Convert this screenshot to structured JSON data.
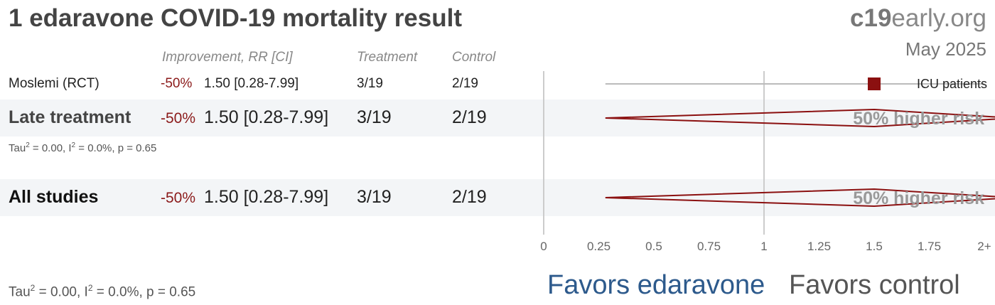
{
  "title": "1 edaravone COVID-19 mortality result",
  "brand": {
    "bold": "c19",
    "rest": "early.org"
  },
  "date": "May 2025",
  "headers": {
    "improvement": "Improvement, RR [CI]",
    "treatment": "Treatment",
    "control": "Control"
  },
  "rows": [
    {
      "label": "Moslemi (RCT)",
      "improvement": "-50%",
      "rr": "1.50 [0.28-7.99]",
      "treatment": "3/19",
      "control": "2/19",
      "note": "ICU patients"
    },
    {
      "label": "Late treatment",
      "improvement": "-50%",
      "rr": "1.50 [0.28-7.99]",
      "treatment": "3/19",
      "control": "2/19",
      "risk": "50% higher risk",
      "stats": {
        "tau": "Tau",
        "tau_val": " = 0.00, I",
        "i_val": " = 0.0%, p = 0.65",
        "sup": "2"
      }
    },
    {
      "label": "All studies",
      "improvement": "-50%",
      "rr": "1.50 [0.28-7.99]",
      "treatment": "3/19",
      "control": "2/19",
      "risk": "50% higher risk"
    }
  ],
  "footer_stats": {
    "tau": "Tau",
    "tau_val": " = 0.00, I",
    "i_val": " = 0.0%, p = 0.65",
    "sup": "2"
  },
  "favors": {
    "left": "Favors edaravone",
    "right": "Favors control"
  },
  "colors": {
    "marker": "#8b1010",
    "favors_left": "#2d5a8c",
    "favors_right": "#555555"
  },
  "chart_data": {
    "type": "forest",
    "xlim": [
      0,
      2
    ],
    "xticks": [
      "0",
      "0.25",
      "0.5",
      "0.75",
      "1",
      "1.25",
      "1.5",
      "1.75",
      "2+"
    ],
    "reference_line": 1,
    "studies": [
      {
        "name": "Moslemi (RCT)",
        "rr": 1.5,
        "ci_low": 0.28,
        "ci_high": 7.99
      }
    ],
    "pooled": [
      {
        "name": "Late treatment",
        "rr": 1.5,
        "ci_low": 0.28,
        "ci_high": 7.99
      },
      {
        "name": "All studies",
        "rr": 1.5,
        "ci_low": 0.28,
        "ci_high": 7.99
      }
    ]
  }
}
